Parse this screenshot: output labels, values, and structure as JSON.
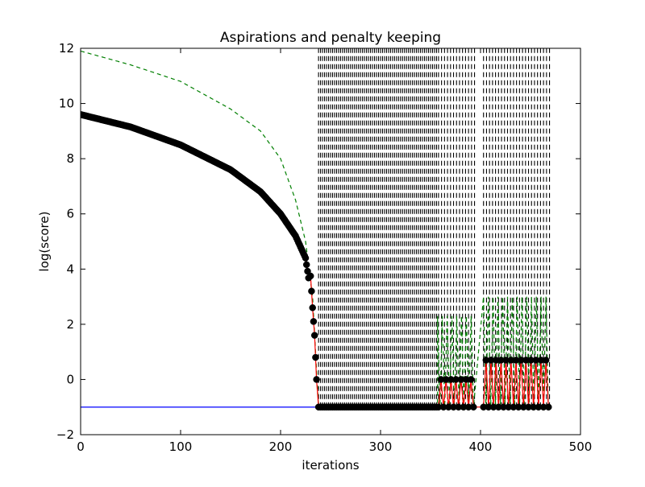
{
  "chart_data": {
    "type": "line",
    "title": "Aspirations and penalty keeping",
    "xlabel": "iterations",
    "ylabel": "log(score)",
    "xlim": [
      0,
      500
    ],
    "ylim": [
      -2,
      12
    ],
    "xticks": [
      0,
      100,
      200,
      300,
      400,
      500
    ],
    "yticks": [
      -2,
      0,
      2,
      4,
      6,
      8,
      10,
      12
    ],
    "xtick_labels": [
      "0",
      "100",
      "200",
      "300",
      "400",
      "500"
    ],
    "ytick_labels": [
      "−2",
      "0",
      "2",
      "4",
      "6",
      "8",
      "10",
      "12"
    ],
    "grid": false,
    "legend": "none",
    "series": [
      {
        "style": "black circle markers with red connecting line",
        "color": "#000000",
        "line_color": "#ff0000",
        "segments": [
          {
            "x_range": [
              0,
              236
            ],
            "curve": "log(score) decays from 9.6 at x=0 to about 3.2 at x=230, then drops steeply to 0 at x=236",
            "points": [
              [
                0,
                9.6
              ],
              [
                50,
                9.15
              ],
              [
                100,
                8.5
              ],
              [
                150,
                7.6
              ],
              [
                180,
                6.8
              ],
              [
                200,
                6.0
              ],
              [
                215,
                5.2
              ],
              [
                225,
                4.4
              ],
              [
                230,
                3.2
              ],
              [
                234,
                1.6
              ],
              [
                236,
                0.0
              ]
            ]
          },
          {
            "x_range": [
              238,
              357
            ],
            "note": "flat at log(score) = -1",
            "y": -1
          },
          {
            "x_range": [
              357,
              395
            ],
            "note": "oscillates between -1 and 0",
            "levels": [
              -1,
              0
            ]
          },
          {
            "x_range": [
              403,
              470
            ],
            "note": "oscillates between -1 and 0.7",
            "levels": [
              -1,
              0.7
            ]
          }
        ]
      },
      {
        "style": "green dashed line",
        "color": "#007f00",
        "segments": [
          {
            "x_range": [
              0,
              238
            ],
            "curve": "starts at 11.9 and drops to -1 near x=238",
            "points": [
              [
                0,
                11.9
              ],
              [
                50,
                11.4
              ],
              [
                100,
                10.8
              ],
              [
                150,
                9.8
              ],
              [
                180,
                9.0
              ],
              [
                200,
                8.0
              ],
              [
                215,
                6.5
              ],
              [
                225,
                5.0
              ],
              [
                232,
                3.0
              ],
              [
                238,
                -1.0
              ]
            ]
          },
          {
            "x_range": [
              238,
              357
            ],
            "y": -1
          },
          {
            "x_range": [
              357,
              395
            ],
            "note": "oscillates between -1 and 2.3",
            "levels": [
              -1,
              2.3
            ]
          },
          {
            "x_range": [
              403,
              470
            ],
            "note": "oscillates between -1 and 3.0",
            "levels": [
              -1,
              3.0
            ]
          }
        ]
      },
      {
        "style": "blue solid line",
        "color": "#0000ff",
        "segments": [
          {
            "x_range": [
              0,
              238
            ],
            "y": -1
          }
        ]
      },
      {
        "style": "black vertical dashed lines",
        "color": "#000000",
        "x_ranges": [
          [
            238,
            357
          ],
          [
            357,
            395
          ],
          [
            403,
            470
          ]
        ],
        "y_range": [
          -1,
          12
        ]
      }
    ]
  }
}
